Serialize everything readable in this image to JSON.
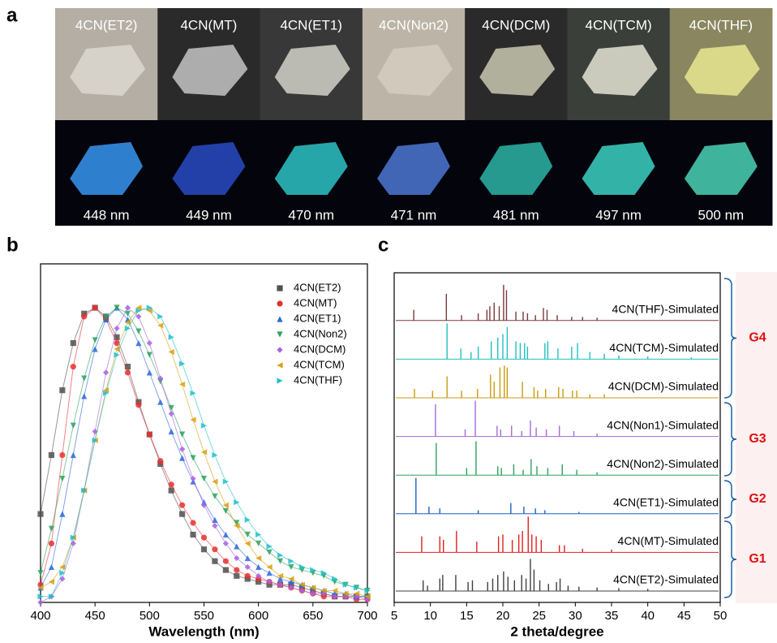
{
  "panel_labels": [
    "a",
    "b",
    "c"
  ],
  "photos": {
    "samples": [
      "4CN(ET2)",
      "4CN(MT)",
      "4CN(ET1)",
      "4CN(Non2)",
      "4CN(DCM)",
      "4CN(TCM)",
      "4CN(THF)"
    ],
    "emission": [
      "448 nm",
      "449 nm",
      "470 nm",
      "471 nm",
      "481 nm",
      "497 nm",
      "500 nm"
    ]
  },
  "chart_data": [
    {
      "type": "line",
      "xlabel": "Wavelength (nm)",
      "legend": "upper right",
      "xlim": [
        400,
        700
      ],
      "xticks": [
        400,
        450,
        500,
        550,
        600,
        650,
        700
      ],
      "ylim": [
        0,
        1.08
      ],
      "x": [
        400,
        410,
        420,
        430,
        440,
        450,
        460,
        470,
        480,
        490,
        500,
        510,
        520,
        530,
        540,
        550,
        560,
        570,
        580,
        590,
        600,
        610,
        620,
        630,
        640,
        650,
        660,
        670,
        680,
        690,
        700
      ],
      "series": [
        {
          "name": "4CN(ET2)",
          "color": "#505050",
          "marker": "square",
          "values": [
            0.3,
            0.5,
            0.72,
            0.88,
            0.98,
            1.0,
            0.97,
            0.9,
            0.8,
            0.68,
            0.57,
            0.47,
            0.38,
            0.3,
            0.23,
            0.18,
            0.14,
            0.11,
            0.09,
            0.08,
            0.07,
            0.06,
            0.06,
            0.06,
            0.05,
            0.04,
            0.03,
            0.02,
            0.02,
            0.02,
            0.02
          ]
        },
        {
          "name": "4CN(MT)",
          "color": "#e83030",
          "marker": "circle",
          "values": [
            0.06,
            0.2,
            0.5,
            0.8,
            0.97,
            1.0,
            0.96,
            0.88,
            0.78,
            0.67,
            0.57,
            0.48,
            0.4,
            0.33,
            0.27,
            0.22,
            0.18,
            0.14,
            0.11,
            0.09,
            0.08,
            0.07,
            0.06,
            0.05,
            0.04,
            0.03,
            0.02,
            0.02,
            0.02,
            0.01,
            0.01
          ]
        },
        {
          "name": "4CN(ET1)",
          "color": "#2a6ad8",
          "marker": "triangle-up",
          "values": [
            0.05,
            0.12,
            0.3,
            0.5,
            0.7,
            0.86,
            0.96,
            1.0,
            0.96,
            0.88,
            0.78,
            0.68,
            0.58,
            0.49,
            0.41,
            0.34,
            0.28,
            0.23,
            0.19,
            0.15,
            0.12,
            0.1,
            0.08,
            0.07,
            0.06,
            0.05,
            0.04,
            0.03,
            0.03,
            0.02,
            0.02
          ]
        },
        {
          "name": "4CN(Non2)",
          "color": "#2ca25f",
          "marker": "triangle-down",
          "values": [
            0.1,
            0.25,
            0.42,
            0.6,
            0.76,
            0.89,
            0.97,
            1.0,
            0.98,
            0.92,
            0.84,
            0.75,
            0.66,
            0.57,
            0.49,
            0.42,
            0.36,
            0.31,
            0.27,
            0.23,
            0.2,
            0.17,
            0.14,
            0.12,
            0.11,
            0.1,
            0.09,
            0.07,
            0.06,
            0.05,
            0.04
          ]
        },
        {
          "name": "4CN(DCM)",
          "color": "#a862e0",
          "marker": "diamond",
          "values": [
            0.0,
            0.02,
            0.08,
            0.2,
            0.38,
            0.58,
            0.78,
            0.93,
            1.0,
            0.97,
            0.88,
            0.76,
            0.64,
            0.52,
            0.42,
            0.33,
            0.26,
            0.2,
            0.15,
            0.12,
            0.09,
            0.07,
            0.06,
            0.05,
            0.04,
            0.03,
            0.03,
            0.02,
            0.02,
            0.02,
            0.01
          ]
        },
        {
          "name": "4CN(TCM)",
          "color": "#d9a010",
          "marker": "triangle-left",
          "values": [
            0.05,
            0.07,
            0.12,
            0.22,
            0.38,
            0.55,
            0.72,
            0.86,
            0.95,
            1.0,
            0.99,
            0.94,
            0.85,
            0.74,
            0.62,
            0.51,
            0.41,
            0.33,
            0.26,
            0.2,
            0.15,
            0.12,
            0.09,
            0.08,
            0.06,
            0.05,
            0.04,
            0.04,
            0.03,
            0.03,
            0.02
          ]
        },
        {
          "name": "4CN(THF)",
          "color": "#20c0c8",
          "marker": "triangle-right",
          "values": [
            0.02,
            0.02,
            0.1,
            0.22,
            0.38,
            0.55,
            0.71,
            0.84,
            0.93,
            0.99,
            1.0,
            0.97,
            0.9,
            0.81,
            0.71,
            0.6,
            0.5,
            0.41,
            0.34,
            0.28,
            0.23,
            0.19,
            0.16,
            0.14,
            0.12,
            0.11,
            0.1,
            0.08,
            0.06,
            0.05,
            0.04
          ]
        }
      ]
    },
    {
      "type": "stick",
      "xlabel": "2 theta/degree",
      "xlim": [
        5,
        50
      ],
      "xticks": [
        5,
        10,
        15,
        20,
        25,
        30,
        35,
        40,
        45,
        50
      ],
      "ylim": [
        0,
        1
      ],
      "groups": [
        "G1",
        "G2",
        "G3",
        "G4"
      ],
      "series": [
        {
          "name": "4CN(ET2)-Simulated",
          "color": "#404040",
          "x": [
            9.0,
            9.6,
            11.3,
            11.7,
            13.5,
            15.2,
            15.8,
            17.9,
            18.6,
            19.3,
            20.1,
            20.7,
            21.6,
            22.6,
            23.2,
            23.8,
            24.3,
            25.1,
            26.3,
            27.4,
            27.9,
            29.0,
            30.5,
            33,
            36,
            40
          ],
          "values": [
            0.3,
            0.15,
            0.35,
            0.45,
            0.45,
            0.25,
            0.3,
            0.25,
            0.35,
            0.45,
            0.55,
            0.4,
            0.3,
            0.45,
            0.35,
            0.9,
            0.6,
            0.3,
            0.2,
            0.25,
            0.35,
            0.15,
            0.12,
            0.1,
            0.08,
            0.06
          ]
        },
        {
          "name": "4CN(MT)-Simulated",
          "color": "#e02020",
          "x": [
            8.8,
            11.3,
            11.8,
            13.6,
            16.4,
            19.4,
            20.0,
            21.3,
            22.2,
            22.7,
            23.5,
            24.0,
            24.6,
            25.3,
            27.8,
            28.5,
            31,
            35
          ],
          "values": [
            0.45,
            0.45,
            0.35,
            0.6,
            0.3,
            0.45,
            0.5,
            0.35,
            0.5,
            0.6,
            1.0,
            0.5,
            0.45,
            0.35,
            0.2,
            0.2,
            0.1,
            0.08
          ]
        },
        {
          "name": "4CN(ET1)-Simulated",
          "color": "#1f5fc8",
          "x": [
            8.0,
            9.8,
            11.3,
            16.6,
            21.1,
            22.9,
            24.5,
            25.8,
            30.5
          ],
          "values": [
            1.0,
            0.2,
            0.15,
            0.1,
            0.3,
            0.2,
            0.15,
            0.1,
            0.05
          ]
        },
        {
          "name": "4CN(Non2)-Simulated",
          "color": "#2ca25f",
          "x": [
            10.8,
            15.0,
            16.3,
            19.3,
            19.8,
            21.5,
            22.8,
            23.9,
            24.7,
            26.2,
            28.2,
            30.2,
            33
          ],
          "values": [
            0.9,
            0.2,
            0.95,
            0.25,
            0.2,
            0.3,
            0.15,
            0.45,
            0.25,
            0.2,
            0.3,
            0.15,
            0.08
          ]
        },
        {
          "name": "4CN(Non1)-Simulated",
          "color": "#a26cd8",
          "x": [
            10.7,
            14.8,
            16.2,
            19.2,
            19.7,
            21.2,
            22.6,
            23.8,
            24.6,
            26.0,
            27.8,
            29.8,
            33
          ],
          "values": [
            0.9,
            0.2,
            1.0,
            0.3,
            0.2,
            0.3,
            0.15,
            0.45,
            0.25,
            0.2,
            0.3,
            0.15,
            0.08
          ]
        },
        {
          "name": "4CN(DCM)-Simulated",
          "color": "#c89b10",
          "x": [
            7.8,
            10.3,
            12.3,
            14.3,
            16.5,
            18.3,
            18.8,
            19.6,
            20.2,
            20.6,
            22.7,
            24.3,
            24.8,
            25.9,
            27.7,
            28.3,
            29.6,
            30.2,
            32,
            34
          ],
          "values": [
            0.25,
            0.2,
            0.6,
            0.2,
            0.25,
            0.65,
            0.45,
            0.85,
            0.9,
            0.85,
            0.45,
            0.3,
            0.2,
            0.25,
            0.3,
            0.25,
            0.2,
            0.2,
            0.1,
            0.1
          ]
        },
        {
          "name": "4CN(TCM)-Simulated",
          "color": "#20c0c0",
          "x": [
            12.3,
            14.2,
            15.6,
            16.6,
            18.4,
            19.3,
            20.0,
            20.6,
            21.8,
            22.4,
            23.0,
            23.4,
            25.8,
            26.2,
            27.6,
            29.5,
            30.3,
            32,
            34,
            36,
            40,
            46
          ],
          "values": [
            1.0,
            0.3,
            0.2,
            0.35,
            0.5,
            0.6,
            0.7,
            0.9,
            0.5,
            0.45,
            0.45,
            0.35,
            0.45,
            0.5,
            0.3,
            0.35,
            0.45,
            0.2,
            0.15,
            0.1,
            0.08,
            0.05
          ]
        },
        {
          "name": "4CN(THF)-Simulated",
          "color": "#7a3a3a",
          "x": [
            7.7,
            12.2,
            14.3,
            16.6,
            17.8,
            18.2,
            18.8,
            19.5,
            20.1,
            20.5,
            21.8,
            22.8,
            23.4,
            24.5,
            25.6,
            26.1,
            27.5,
            29.5,
            31,
            33
          ],
          "values": [
            0.3,
            0.75,
            0.15,
            0.2,
            0.3,
            0.4,
            0.5,
            0.4,
            1.0,
            0.85,
            0.25,
            0.25,
            0.2,
            0.15,
            0.35,
            0.3,
            0.15,
            0.1,
            0.1,
            0.08
          ]
        }
      ]
    }
  ]
}
